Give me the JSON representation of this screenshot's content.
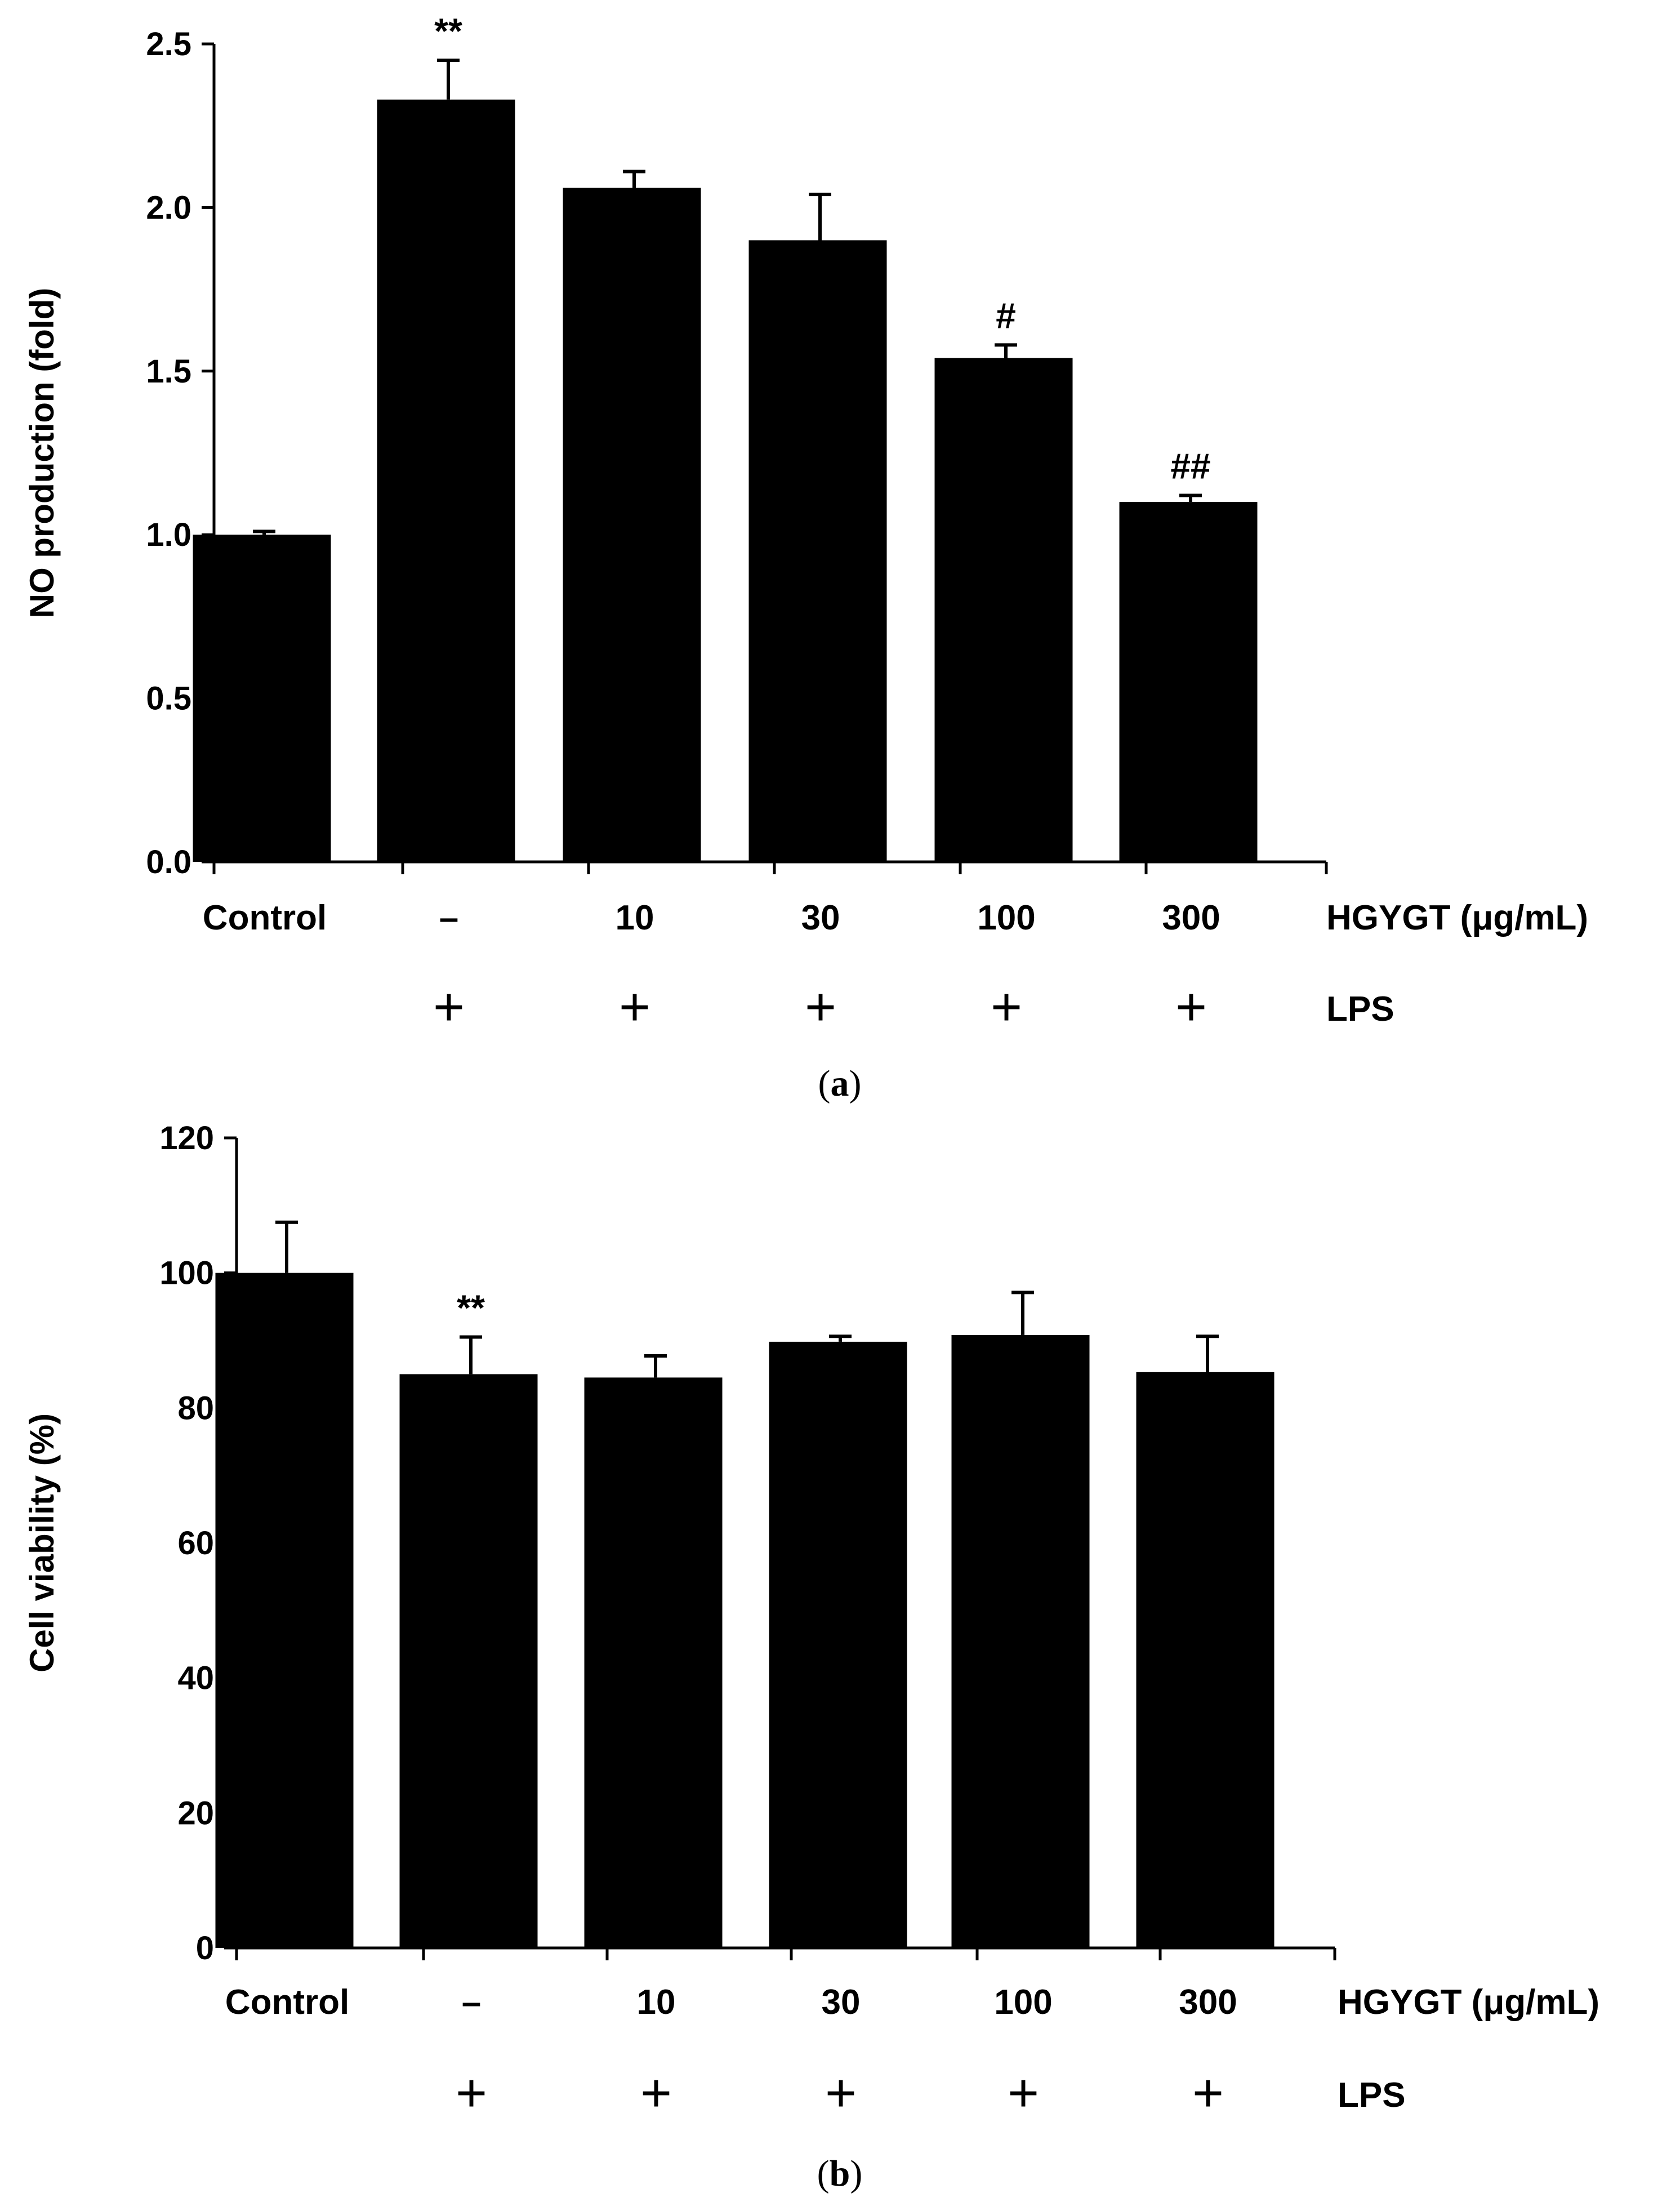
{
  "chart_data": [
    {
      "panel": "(a)",
      "panel_letter": "a",
      "type": "bar",
      "ylabel": "NO production (fold)",
      "ylim": [
        0,
        2.5
      ],
      "yticks": [
        "0.0",
        "0.5",
        "1.0",
        "1.5",
        "2.0",
        "2.5"
      ],
      "ytick_values": [
        0,
        0.5,
        1.0,
        1.5,
        2.0,
        2.5
      ],
      "categories": [
        "Control",
        "–",
        "10",
        "30",
        "100",
        "300"
      ],
      "x_axis_label": "HGYGT (μg/mL)",
      "lps_row_label": "LPS",
      "lps": [
        "",
        "+",
        "+",
        "+",
        "+",
        "+"
      ],
      "values": [
        1.0,
        2.33,
        2.06,
        1.9,
        1.54,
        1.1
      ],
      "errors": [
        0.01,
        0.12,
        0.05,
        0.14,
        0.04,
        0.02
      ],
      "annotations": [
        "",
        "**",
        "",
        "",
        "#",
        "##"
      ],
      "bar_color": "#000000"
    },
    {
      "panel": "(b)",
      "panel_letter": "b",
      "type": "bar",
      "ylabel": "Cell viability (%)",
      "ylim": [
        0,
        120
      ],
      "yticks": [
        "0",
        "20",
        "40",
        "60",
        "80",
        "100",
        "120"
      ],
      "ytick_values": [
        0,
        20,
        40,
        60,
        80,
        100,
        120
      ],
      "categories": [
        "Control",
        "–",
        "10",
        "30",
        "100",
        "300"
      ],
      "x_axis_label": "HGYGT (μg/mL)",
      "lps_row_label": "LPS",
      "lps": [
        "",
        "+",
        "+",
        "+",
        "+",
        "+"
      ],
      "values": [
        100,
        85,
        84.5,
        89.8,
        90.8,
        85.3
      ],
      "errors": [
        7.5,
        5.5,
        3.2,
        0.8,
        6.3,
        5.3
      ],
      "annotations": [
        "",
        "**",
        "",
        "",
        "",
        ""
      ],
      "bar_color": "#000000"
    }
  ]
}
